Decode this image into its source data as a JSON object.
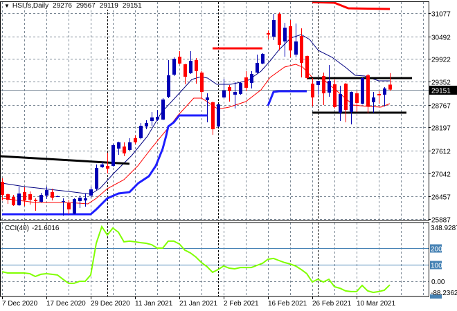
{
  "header": {
    "symbol_label": "HSI,fs,Daily",
    "open": "29276",
    "high": "29567",
    "low": "29119",
    "close": "29151",
    "dropdown_icon": "triangle-down-icon"
  },
  "colors": {
    "bull_candle": "#0000b4",
    "bear_candle": "#ff0000",
    "fast_ma": "#000080",
    "slow_ma": "#ff0000",
    "stop_line": "#1e1eff",
    "cci_line": "#80ff00",
    "cci_levels": "#4682b4",
    "grid": "#7a8794",
    "price_line": "#708090"
  },
  "chart_data": [
    {
      "type": "candlestick",
      "title": "HSI,fs,Daily",
      "ohlc_fields": [
        "open",
        "high",
        "low",
        "close"
      ],
      "y_axis": {
        "ticks": [
          "31077",
          "30492",
          "29922",
          "29352",
          "28767",
          "28197",
          "27612",
          "27042",
          "26457",
          "25887"
        ],
        "range": [
          25887,
          31250
        ]
      },
      "x_axis": {
        "tick_labels": [
          {
            "index": 0,
            "label": "7 Dec 2020"
          },
          {
            "index": 8,
            "label": "17 Dec 2020"
          },
          {
            "index": 16,
            "label": "29 Dec 2020"
          },
          {
            "index": 24,
            "label": "11 Jan 2021"
          },
          {
            "index": 32,
            "label": "21 Jan 2021"
          },
          {
            "index": 40,
            "label": "2 Feb 2021"
          },
          {
            "index": 48,
            "label": "16 Feb 2021"
          },
          {
            "index": 56,
            "label": "26 Feb 2021"
          },
          {
            "index": 64,
            "label": "10 Mar 2021"
          }
        ]
      },
      "grid": true,
      "current_price": "29151",
      "candles": [
        [
          26828,
          26915,
          26357,
          26497
        ],
        [
          26514,
          26532,
          26270,
          26375
        ],
        [
          26444,
          26497,
          26218,
          26235
        ],
        [
          26235,
          26706,
          26218,
          26532
        ],
        [
          26566,
          26688,
          26218,
          26357
        ],
        [
          26514,
          26584,
          26253,
          26375
        ],
        [
          26375,
          26410,
          26096,
          26340
        ],
        [
          26323,
          26549,
          26305,
          26497
        ],
        [
          26479,
          26706,
          26392,
          26619
        ],
        [
          26566,
          26653,
          26357,
          26427
        ],
        [
          26462,
          26479,
          26444,
          26462
        ],
        [
          26323,
          26410,
          25974,
          26340
        ],
        [
          26288,
          26375,
          26009,
          26131
        ],
        [
          26026,
          26410,
          26009,
          26392
        ],
        [
          26340,
          26479,
          26166,
          26427
        ],
        [
          26357,
          26532,
          26201,
          26410
        ],
        [
          26479,
          26706,
          26427,
          26636
        ],
        [
          26653,
          27263,
          26619,
          27176
        ],
        [
          27194,
          27333,
          27176,
          27263
        ],
        [
          27228,
          27559,
          27037,
          27159
        ],
        [
          27228,
          27786,
          27211,
          27751
        ],
        [
          27664,
          27838,
          27507,
          27821
        ],
        [
          27716,
          27821,
          27472,
          27542
        ],
        [
          27629,
          27925,
          27612,
          27821
        ],
        [
          27925,
          27995,
          27786,
          27821
        ],
        [
          27925,
          28308,
          27900,
          28239
        ],
        [
          28221,
          28378,
          28152,
          28308
        ],
        [
          28361,
          28587,
          28239,
          28448
        ],
        [
          28395,
          28639,
          28361,
          28465
        ],
        [
          28395,
          28936,
          28378,
          28901
        ],
        [
          28970,
          29894,
          28936,
          29510
        ],
        [
          29527,
          29963,
          29493,
          29928
        ],
        [
          29981,
          30120,
          29789,
          29807
        ],
        [
          29789,
          29800,
          29284,
          29475
        ],
        [
          29563,
          30120,
          29545,
          29876
        ],
        [
          29894,
          29946,
          29301,
          29615
        ],
        [
          29580,
          29615,
          28936,
          29092
        ],
        [
          28883,
          29057,
          28326,
          28953
        ],
        [
          28831,
          28849,
          28012,
          28152
        ],
        [
          28221,
          28790,
          28204,
          28779
        ],
        [
          28953,
          29423,
          28940,
          29127
        ],
        [
          29214,
          29266,
          28849,
          29110
        ],
        [
          29023,
          29336,
          28674,
          29092
        ],
        [
          29040,
          29336,
          29023,
          29319
        ],
        [
          29458,
          29615,
          29110,
          29197
        ],
        [
          29319,
          29615,
          29179,
          29545
        ],
        [
          29580,
          30033,
          29563,
          29824
        ],
        [
          29807,
          30068,
          29789,
          30050
        ],
        [
          30573,
          30643,
          30416,
          30538
        ],
        [
          30486,
          31061,
          30399,
          30904
        ],
        [
          31061,
          31096,
          30137,
          30277
        ],
        [
          30364,
          30834,
          29981,
          30712
        ],
        [
          30747,
          30904,
          29963,
          30137
        ],
        [
          30033,
          30817,
          29963,
          30364
        ],
        [
          30503,
          30695,
          29458,
          29824
        ],
        [
          29998,
          30010,
          29406,
          29441
        ],
        [
          29301,
          29441,
          28726,
          28953
        ],
        [
          29266,
          29371,
          29023,
          29371
        ],
        [
          29493,
          29580,
          28761,
          29057
        ],
        [
          29075,
          29772,
          28970,
          29371
        ],
        [
          29284,
          29406,
          28674,
          28709
        ],
        [
          28570,
          29249,
          28361,
          29040
        ],
        [
          29301,
          29319,
          28326,
          28639
        ],
        [
          28587,
          29100,
          28274,
          29092
        ],
        [
          29057,
          29127,
          28587,
          28814
        ],
        [
          28796,
          29458,
          28780,
          29441
        ],
        [
          29510,
          29545,
          28552,
          28726
        ],
        [
          28831,
          29092,
          28570,
          28953
        ],
        [
          29040,
          29110,
          28796,
          29005
        ],
        [
          29023,
          29214,
          28726,
          29179
        ],
        [
          29276,
          29567,
          29119,
          29151
        ]
      ],
      "overlays": {
        "fast_ma": [
          [
            0,
            26793
          ],
          [
            4,
            26706
          ],
          [
            12,
            26584
          ],
          [
            16,
            26514
          ],
          [
            17.75,
            26671
          ],
          [
            20.25,
            27054
          ],
          [
            23.4,
            27490
          ],
          [
            26.25,
            27977
          ],
          [
            28.75,
            28570
          ],
          [
            31.75,
            29023
          ],
          [
            34.25,
            29406
          ],
          [
            35.9,
            29475
          ],
          [
            37.1,
            29441
          ],
          [
            38.75,
            29284
          ],
          [
            41.25,
            29284
          ],
          [
            44.25,
            29371
          ],
          [
            46.75,
            29615
          ],
          [
            48.4,
            29876
          ],
          [
            50,
            30155
          ],
          [
            52.1,
            30451
          ],
          [
            54,
            30538
          ],
          [
            55.5,
            30416
          ],
          [
            57.1,
            30137
          ],
          [
            59.6,
            29963
          ],
          [
            62.1,
            29702
          ],
          [
            63.75,
            29510
          ],
          [
            65.5,
            29493
          ],
          [
            68,
            29371
          ],
          [
            70,
            29371
          ]
        ],
        "slow_ma": [
          [
            0,
            26410
          ],
          [
            6,
            26305
          ],
          [
            12,
            26305
          ],
          [
            15.5,
            26270
          ],
          [
            17,
            26410
          ],
          [
            19,
            26653
          ],
          [
            22,
            26880
          ],
          [
            24.5,
            27228
          ],
          [
            27,
            27681
          ],
          [
            30.5,
            28274
          ],
          [
            31.75,
            28500
          ],
          [
            34.6,
            28936
          ],
          [
            36,
            28936
          ],
          [
            37,
            28849
          ],
          [
            39,
            28657
          ],
          [
            41,
            28709
          ],
          [
            44,
            28849
          ],
          [
            46.75,
            29145
          ],
          [
            48.4,
            29458
          ],
          [
            51,
            29719
          ],
          [
            53,
            29789
          ],
          [
            54.25,
            29719
          ],
          [
            56,
            29458
          ],
          [
            58,
            29406
          ],
          [
            60.5,
            29110
          ],
          [
            63.4,
            28761
          ],
          [
            66,
            28726
          ],
          [
            68.4,
            28709
          ],
          [
            70,
            28796
          ]
        ],
        "stop_line_segments": [
          [
            [
              0,
              26009
            ],
            [
              16,
              26009
            ],
            [
              17,
              26131
            ],
            [
              19,
              26410
            ],
            [
              21,
              26532
            ],
            [
              23,
              26566
            ],
            [
              24.6,
              26793
            ],
            [
              26.5,
              26967
            ],
            [
              27.75,
              27228
            ],
            [
              29,
              27664
            ],
            [
              29.6,
              27977
            ],
            [
              30,
              28221
            ],
            [
              31,
              28326
            ],
            [
              32,
              28500
            ],
            [
              37,
              28500
            ]
          ],
          [
            [
              48,
              28744
            ],
            [
              49,
              29092
            ],
            [
              50,
              29110
            ],
            [
              55,
              29110
            ]
          ]
        ],
        "drawn_lines": [
          {
            "color": "#000000",
            "points": [
              [
                -0.4,
                27472
              ],
              [
                23,
                27281
              ]
            ]
          },
          {
            "color": "#ff0000",
            "points": [
              [
                38,
                30190
              ],
              [
                47,
                30190
              ]
            ]
          },
          {
            "color": "#ff0000",
            "points": [
              [
                56,
                31357
              ],
              [
                60,
                31340
              ],
              [
                62.5,
                31200
              ],
              [
                70,
                31183
              ]
            ]
          },
          {
            "color": "#000000",
            "points": [
              [
                55,
                29441
              ],
              [
                74,
                29441
              ]
            ]
          },
          {
            "color": "#000000",
            "points": [
              [
                56,
                28570
              ],
              [
                73,
                28570
              ]
            ]
          }
        ],
        "period_separators": [
          19,
          39,
          57
        ]
      }
    },
    {
      "type": "line",
      "title": "CCI(40)",
      "current_value": "-21.6016",
      "y_axis": {
        "max_label": "348.9287",
        "min_label": "-88.2362",
        "range": [
          -88.2362,
          348.9287
        ],
        "levels": [
          "200",
          "100"
        ],
        "zero_label": "0.00"
      },
      "series": [
        {
          "name": "CCI(40)",
          "values": [
            58,
            50,
            50,
            50,
            50,
            46,
            29,
            42,
            46,
            42,
            38,
            12,
            -12,
            -12,
            0,
            0,
            38,
            229,
            329,
            279,
            321,
            296,
            238,
            242,
            238,
            233,
            229,
            221,
            200,
            200,
            242,
            242,
            225,
            188,
            171,
            146,
            113,
            88,
            54,
            71,
            92,
            79,
            75,
            83,
            83,
            83,
            96,
            108,
            133,
            138,
            125,
            113,
            104,
            92,
            71,
            46,
            -4,
            12,
            -4,
            12,
            -33,
            -42,
            -58,
            -62,
            -62,
            -25,
            -58,
            -67,
            -62,
            -54,
            -21.6016
          ]
        }
      ]
    }
  ]
}
